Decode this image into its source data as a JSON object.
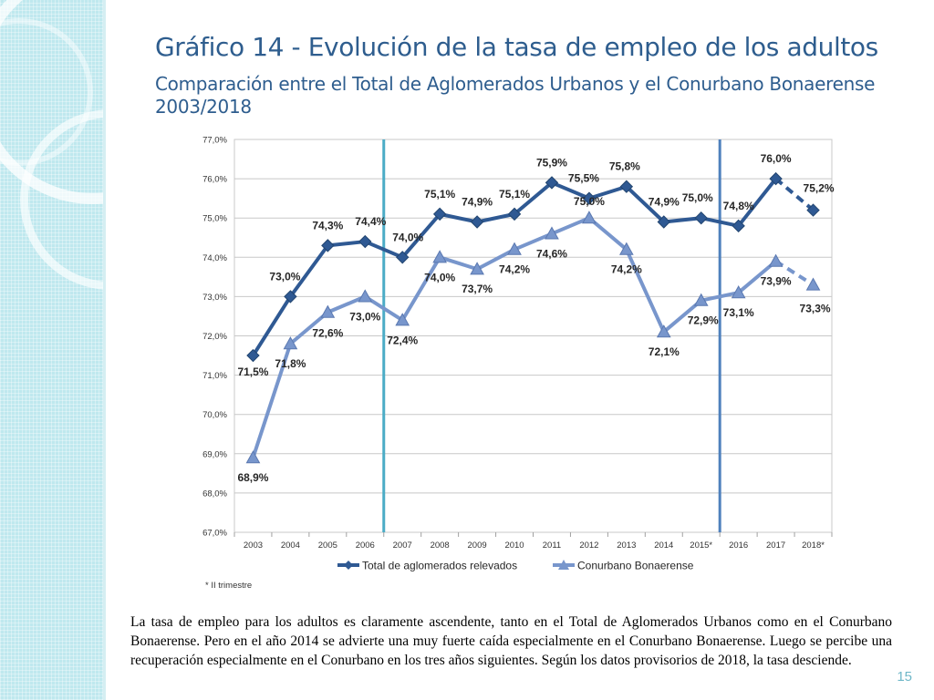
{
  "slide": {
    "title": "Gráfico 14 - Evolución de la tasa de empleo de los adultos",
    "subtitle": "Comparación entre el Total de Aglomerados Urbanos y el Conurbano Bonaerense 2003/2018",
    "body_text": "La tasa de empleo para los adultos es claramente ascendente, tanto en el Total de Aglomerados Urbanos como en el Conurbano Bonaerense.  Pero en el año 2014 se advierte una muy fuerte caída especialmente en el Conurbano Bonaerense. Luego se percibe una recuperación especialmente en el Conurbano en los tres años siguientes.  Según los datos provisorios de 2018, la tasa desciende.",
    "page_number": "15"
  },
  "chart_data": {
    "type": "line",
    "title": "",
    "xlabel": "",
    "ylabel": "",
    "ylim": [
      67.0,
      77.0
    ],
    "y_ticks": [
      "67,0%",
      "68,0%",
      "69,0%",
      "70,0%",
      "71,0%",
      "72,0%",
      "73,0%",
      "74,0%",
      "75,0%",
      "76,0%",
      "77,0%"
    ],
    "categories": [
      "2003",
      "2004",
      "2005",
      "2006",
      "2007",
      "2008",
      "2009",
      "2010",
      "2011",
      "2012",
      "2013",
      "2014",
      "2015*",
      "2016",
      "2017",
      "2018*"
    ],
    "grid": true,
    "legend_position": "bottom",
    "footnote": "* II trimestre",
    "vertical_lines": [
      {
        "between": [
          "2006",
          "2007"
        ],
        "color": "#4bacc6"
      },
      {
        "between": [
          "2015*",
          "2016"
        ],
        "color": "#4f81bd"
      }
    ],
    "series": [
      {
        "name": "Total de aglomerados relevados",
        "marker": "diamond",
        "color": "#2f5993",
        "dashed_last_segment": true,
        "values": [
          71.5,
          73.0,
          74.3,
          74.4,
          74.0,
          75.1,
          74.9,
          75.1,
          75.9,
          75.5,
          75.8,
          74.9,
          75.0,
          74.8,
          76.0,
          75.2
        ],
        "labels": [
          "71,5%",
          "73,0%",
          "74,3%",
          "74,4%",
          "74,0%",
          "75,1%",
          "74,9%",
          "75,1%",
          "75,9%",
          "75,5%",
          "75,8%",
          "74,9%",
          "75,0%",
          "74,8%",
          "76,0%",
          "75,2%"
        ]
      },
      {
        "name": "Conurbano Bonaerense",
        "marker": "triangle",
        "color": "#7896cc",
        "dashed_last_segment": true,
        "values": [
          68.9,
          71.8,
          72.6,
          73.0,
          72.4,
          74.0,
          73.7,
          74.2,
          74.6,
          75.0,
          74.2,
          72.1,
          72.9,
          73.1,
          73.9,
          73.3
        ],
        "labels": [
          "68,9%",
          "71,8%",
          "72,6%",
          "73,0%",
          "72,4%",
          "74,0%",
          "73,7%",
          "74,2%",
          "74,6%",
          "75,0%",
          "74,2%",
          "72,1%",
          "72,9%",
          "73,1%",
          "73,9%",
          "73,3%"
        ]
      }
    ]
  }
}
